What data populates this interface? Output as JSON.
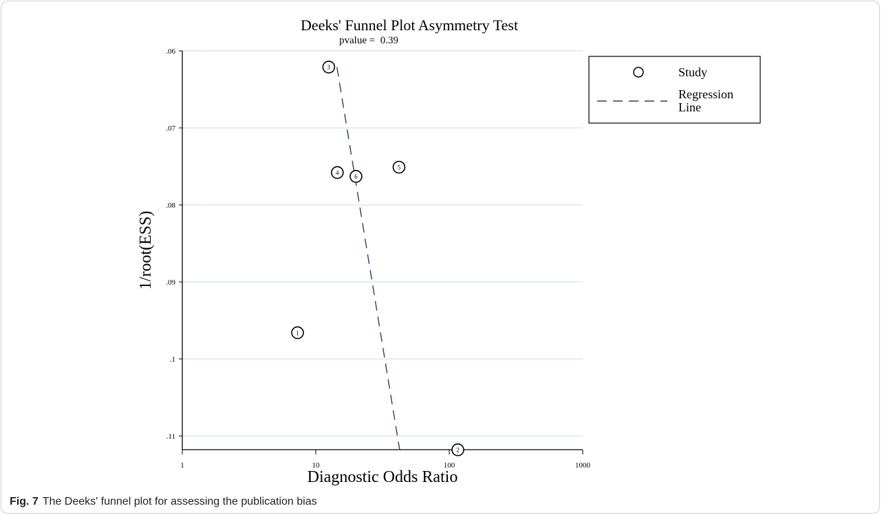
{
  "chart_data": {
    "type": "scatter",
    "title": "Deeks' Funnel Plot Asymmetry Test",
    "subtitle": "pvalue =  0.39",
    "xlabel": "Diagnostic Odds Ratio",
    "ylabel": "1/root(ESS)",
    "x_scale": "log",
    "xlim": [
      1,
      1000
    ],
    "ylim": [
      0.1118,
      0.06
    ],
    "y_inverted": true,
    "grid": true,
    "x_ticks": [
      {
        "value": 1,
        "label": "1"
      },
      {
        "value": 10,
        "label": "10"
      },
      {
        "value": 100,
        "label": "100"
      },
      {
        "value": 1000,
        "label": "1000"
      }
    ],
    "y_ticks": [
      {
        "value": 0.06,
        "label": ".06"
      },
      {
        "value": 0.07,
        "label": ".07"
      },
      {
        "value": 0.08,
        "label": ".08"
      },
      {
        "value": 0.09,
        "label": ".09"
      },
      {
        "value": 0.1,
        "label": ".1"
      },
      {
        "value": 0.11,
        "label": ".11"
      }
    ],
    "points": [
      {
        "label": "1",
        "x": 7.3,
        "y": 0.0966
      },
      {
        "label": "2",
        "x": 116,
        "y": 0.1118
      },
      {
        "label": "3",
        "x": 12.5,
        "y": 0.0621
      },
      {
        "label": "4",
        "x": 14.5,
        "y": 0.0758
      },
      {
        "label": "5",
        "x": 42,
        "y": 0.0751
      },
      {
        "label": "6",
        "x": 20,
        "y": 0.0763
      }
    ],
    "regression_line": [
      {
        "x": 14.4,
        "y": 0.0621
      },
      {
        "x": 42.5,
        "y": 0.1118
      }
    ],
    "legend": {
      "position": "right",
      "entries": [
        {
          "symbol": "circle",
          "label": "Study"
        },
        {
          "symbol": "dashed-line",
          "label": "Regression Line"
        }
      ]
    },
    "colors": {
      "regression_line": "#2c3e66",
      "grid": "#e3eeee",
      "markers": "#000000"
    }
  },
  "caption": {
    "label": "Fig. 7",
    "text": "The Deeks' funnel plot for assessing the publication bias"
  }
}
